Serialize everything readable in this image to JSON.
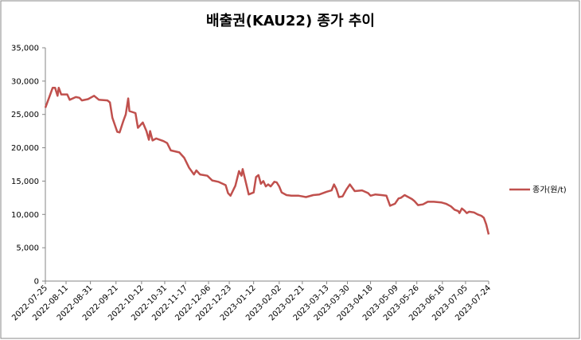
{
  "chart_data": {
    "type": "line",
    "title": "배출권(KAU22) 종가 추이",
    "x": [
      "2022-07-25",
      "2022-07-28",
      "2022-07-31",
      "2022-08-02",
      "2022-08-04",
      "2022-08-05",
      "2022-08-07",
      "2022-08-12",
      "2022-08-14",
      "2022-08-19",
      "2022-08-22",
      "2022-08-24",
      "2022-08-29",
      "2022-09-03",
      "2022-09-07",
      "2022-09-14",
      "2022-09-16",
      "2022-09-18",
      "2022-09-22",
      "2022-09-24",
      "2022-09-27",
      "2022-09-29",
      "2022-10-01",
      "2022-10-02",
      "2022-10-07",
      "2022-10-09",
      "2022-10-13",
      "2022-10-16",
      "2022-10-18",
      "2022-10-19",
      "2022-10-21",
      "2022-10-24",
      "2022-10-30",
      "2022-11-02",
      "2022-11-05",
      "2022-11-12",
      "2022-11-16",
      "2022-11-20",
      "2022-11-24",
      "2022-11-26",
      "2022-11-29",
      "2022-12-05",
      "2022-12-09",
      "2022-12-14",
      "2022-12-20",
      "2022-12-22",
      "2022-12-24",
      "2022-12-28",
      "2022-12-31",
      "2023-01-02",
      "2023-01-03",
      "2023-01-06",
      "2023-01-08",
      "2023-01-12",
      "2023-01-14",
      "2023-01-16",
      "2023-01-18",
      "2023-01-20",
      "2023-01-22",
      "2023-01-24",
      "2023-01-26",
      "2023-01-29",
      "2023-01-31",
      "2023-02-02",
      "2023-02-04",
      "2023-02-08",
      "2023-02-12",
      "2023-02-18",
      "2023-02-24",
      "2023-03-02",
      "2023-03-07",
      "2023-03-13",
      "2023-03-17",
      "2023-03-19",
      "2023-03-21",
      "2023-03-23",
      "2023-03-26",
      "2023-03-29",
      "2023-04-01",
      "2023-04-05",
      "2023-04-11",
      "2023-04-16",
      "2023-04-18",
      "2023-04-22",
      "2023-04-27",
      "2023-05-01",
      "2023-05-04",
      "2023-05-08",
      "2023-05-11",
      "2023-05-13",
      "2023-05-16",
      "2023-05-19",
      "2023-05-22",
      "2023-05-24",
      "2023-05-27",
      "2023-05-31",
      "2023-06-04",
      "2023-06-09",
      "2023-06-15",
      "2023-06-19",
      "2023-06-23",
      "2023-06-26",
      "2023-06-29",
      "2023-06-30",
      "2023-07-02",
      "2023-07-04",
      "2023-07-06",
      "2023-07-08",
      "2023-07-12",
      "2023-07-15",
      "2023-07-18",
      "2023-07-20",
      "2023-07-22",
      "2023-07-24"
    ],
    "series": [
      {
        "name": "종가(원/t)",
        "color": "#c0504d",
        "values": [
          26000,
          27500,
          29000,
          29000,
          27800,
          29000,
          28000,
          28000,
          27200,
          27600,
          27500,
          27100,
          27300,
          27800,
          27200,
          27100,
          26800,
          24500,
          22400,
          22300,
          24000,
          25000,
          27400,
          25500,
          25200,
          23000,
          23800,
          22500,
          21200,
          22500,
          21100,
          21400,
          21000,
          20700,
          19600,
          19300,
          18500,
          17000,
          16000,
          16600,
          16000,
          15800,
          15100,
          14900,
          14400,
          13200,
          12800,
          14300,
          16500,
          15800,
          16800,
          14500,
          13000,
          13300,
          15600,
          15900,
          14600,
          15000,
          14200,
          14500,
          14200,
          14900,
          14800,
          14200,
          13300,
          12900,
          12800,
          12800,
          12600,
          12900,
          13000,
          13400,
          13600,
          14500,
          13800,
          12600,
          12700,
          13700,
          14500,
          13500,
          13600,
          13200,
          12800,
          13000,
          12900,
          12800,
          11300,
          11600,
          12400,
          12500,
          12900,
          12600,
          12300,
          12000,
          11400,
          11500,
          11900,
          11900,
          11800,
          11600,
          11200,
          10700,
          10500,
          10200,
          10900,
          10600,
          10200,
          10400,
          10300,
          10000,
          9800,
          9500,
          8500,
          7000
        ]
      }
    ],
    "xticks": [
      "2022-07-25",
      "2022-08-11",
      "2022-08-31",
      "2022-09-21",
      "2022-10-12",
      "2022-10-31",
      "2022-11-17",
      "2022-12-06",
      "2022-12-23",
      "2023-01-12",
      "2023-02-02",
      "2023-02-21",
      "2023-03-13",
      "2023-03-30",
      "2023-04-18",
      "2023-05-09",
      "2023-05-26",
      "2023-06-16",
      "2023-07-05",
      "2023-07-24"
    ],
    "ylim": [
      0,
      35000
    ],
    "yticks": [
      0,
      {
        "value": 5000,
        "label": "5,000"
      },
      {
        "value": 10000,
        "label": "10,000"
      },
      {
        "value": 15000,
        "label": "15,000"
      },
      {
        "value": 20000,
        "label": "20,000"
      },
      {
        "value": 25000,
        "label": "25,000"
      },
      {
        "value": 30000,
        "label": "30,000"
      },
      {
        "value": 35000,
        "label": "35,000"
      }
    ],
    "legend": "right",
    "grid": false
  }
}
